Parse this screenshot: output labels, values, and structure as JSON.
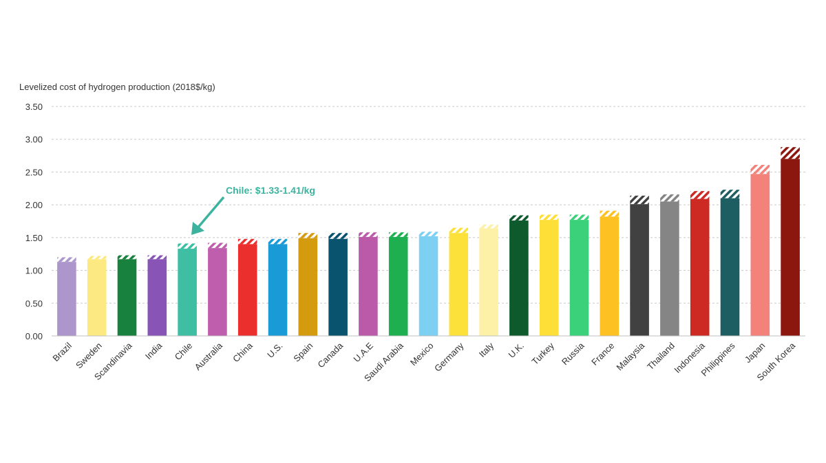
{
  "chart_data": {
    "type": "bar",
    "ylabel": "Levelized cost of hydrogen production (2018$/kg)",
    "ylim": [
      0,
      3.5
    ],
    "yticks": [
      "0.00",
      "0.50",
      "1.00",
      "1.50",
      "2.00",
      "2.50",
      "3.00",
      "3.50"
    ],
    "grid": true,
    "categories": [
      "Brazil",
      "Sweden",
      "Scandinavia",
      "India",
      "Chile",
      "Australia",
      "China",
      "U.S.",
      "Spain",
      "Canada",
      "U.A.E",
      "Saudi Arabia",
      "Mexico",
      "Germany",
      "Italy",
      "U.K.",
      "Turkey",
      "Russia",
      "France",
      "Malaysia",
      "Thailand",
      "Indonesia",
      "Philippines",
      "Japan",
      "South Korea"
    ],
    "series": [
      {
        "values_low": [
          1.13,
          1.17,
          1.17,
          1.17,
          1.33,
          1.34,
          1.4,
          1.4,
          1.49,
          1.48,
          1.51,
          1.51,
          1.52,
          1.57,
          1.64,
          1.76,
          1.77,
          1.77,
          1.82,
          2.01,
          2.05,
          2.09,
          2.1,
          2.47,
          2.7
        ],
        "values_high": [
          1.2,
          1.22,
          1.23,
          1.23,
          1.41,
          1.42,
          1.48,
          1.48,
          1.57,
          1.57,
          1.58,
          1.58,
          1.59,
          1.65,
          1.7,
          1.84,
          1.85,
          1.85,
          1.91,
          2.14,
          2.16,
          2.21,
          2.23,
          2.61,
          2.88
        ]
      }
    ],
    "colors": [
      "#ad96cb",
      "#fde981",
      "#17813d",
      "#8854b5",
      "#3ebfa4",
      "#bf5eac",
      "#ea2f2c",
      "#1a9ad6",
      "#d39b0d",
      "#09536e",
      "#bc5aaa",
      "#1eaf51",
      "#7ed0f3",
      "#fde13b",
      "#fdf0a7",
      "#0e5a2c",
      "#fddf38",
      "#3bd17b",
      "#fdc222",
      "#414141",
      "#858585",
      "#cd2a23",
      "#1c5e62",
      "#f2827a",
      "#8b170e"
    ],
    "annotation": {
      "text": "Chile:  $1.33-1.41/kg",
      "color": "#3bb39e"
    }
  }
}
